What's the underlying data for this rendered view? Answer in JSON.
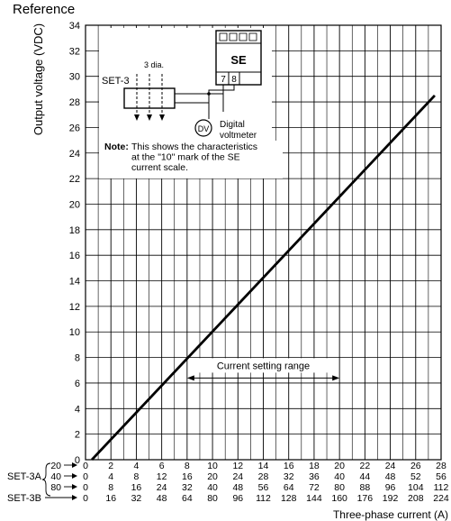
{
  "header": {
    "reference_label": "Reference"
  },
  "chart_data": {
    "type": "line",
    "ylabel": "Output voltage (VDC)",
    "xlabel": "Three-phase current (A)",
    "ylim": [
      0,
      34
    ],
    "y_ticks": [
      0,
      2,
      4,
      6,
      8,
      10,
      12,
      14,
      16,
      18,
      20,
      22,
      24,
      26,
      28,
      30,
      32,
      34
    ],
    "x_ticks": [
      0,
      2,
      4,
      6,
      8,
      10,
      12,
      14,
      16,
      18,
      20,
      22,
      24,
      26,
      28
    ],
    "xlim": [
      0,
      28
    ],
    "grid": true,
    "series": [
      {
        "x": [
          0.5,
          27.5
        ],
        "y": [
          0,
          28.5
        ]
      }
    ],
    "scale_rows": [
      {
        "label": "",
        "marker": "20",
        "values": [
          "0",
          "2",
          "4",
          "6",
          "8",
          "10",
          "12",
          "14",
          "16",
          "18",
          "20",
          "22",
          "24",
          "26",
          "28"
        ]
      },
      {
        "label": "SET-3A",
        "marker": "40",
        "values": [
          "0",
          "4",
          "8",
          "12",
          "16",
          "20",
          "24",
          "28",
          "32",
          "36",
          "40",
          "44",
          "48",
          "52",
          "56"
        ]
      },
      {
        "label": "",
        "marker": "80",
        "values": [
          "0",
          "8",
          "16",
          "24",
          "32",
          "40",
          "48",
          "56",
          "64",
          "72",
          "80",
          "88",
          "96",
          "104",
          "112"
        ]
      },
      {
        "label": "SET-3B",
        "marker": "",
        "values": [
          "0",
          "16",
          "32",
          "48",
          "64",
          "80",
          "96",
          "112",
          "128",
          "144",
          "160",
          "176",
          "192",
          "208",
          "224"
        ]
      }
    ],
    "annotations": {
      "current_setting_range": {
        "text": "Current setting range",
        "x_from": 8,
        "x_to": 20,
        "y": 7.8
      },
      "note_label": "Note:",
      "note_lines": [
        "This shows the characteristics",
        "at the \"10\" mark of the SE",
        "current scale."
      ]
    },
    "diagram": {
      "se_label": "SE",
      "terminals": [
        "7",
        "8"
      ],
      "set3_label": "SET-3",
      "dia_label": "3 dia.",
      "dv_label": "DV",
      "voltmeter_lines": [
        "Digital",
        "voltmeter"
      ]
    }
  }
}
